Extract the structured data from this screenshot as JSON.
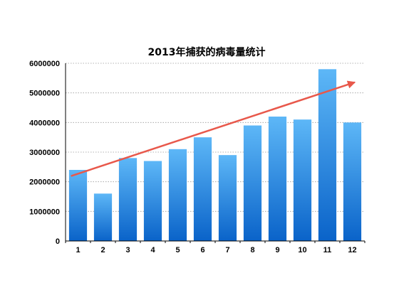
{
  "chart_data": {
    "type": "bar",
    "title": "2013年捕获的病毒量统计",
    "xlabel": "",
    "ylabel": "",
    "categories": [
      "1",
      "2",
      "3",
      "4",
      "5",
      "6",
      "7",
      "8",
      "9",
      "10",
      "11",
      "12"
    ],
    "values": [
      2400000,
      1600000,
      2800000,
      2700000,
      3100000,
      3500000,
      2900000,
      3900000,
      4200000,
      4100000,
      5800000,
      4000000
    ],
    "ylim": [
      0,
      6000000
    ],
    "yticks": [
      "0",
      "1000000",
      "2000000",
      "3000000",
      "4000000",
      "5000000",
      "6000000"
    ],
    "grid": true,
    "legend": "none",
    "trend_arrow": {
      "start": {
        "x": "1",
        "y": 2200000
      },
      "end": {
        "x": "12",
        "y": 5350000
      }
    },
    "colors": {
      "bar_top": "#5db7f7",
      "bar_bottom": "#0a63c9",
      "arrow": "#e8584b",
      "grid": "#9a9a9a",
      "axis": "#000000"
    }
  }
}
